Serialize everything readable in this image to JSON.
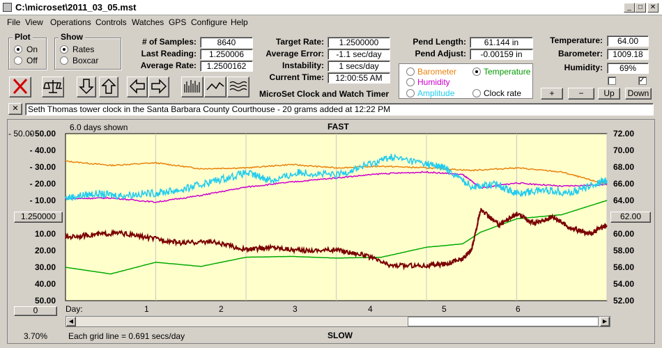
{
  "window": {
    "title": "C:\\microset\\2011_03_05.mst"
  },
  "menu": [
    "File",
    "View",
    "Operations",
    "Controls",
    "Watches",
    "GPS",
    "Configure",
    "Help"
  ],
  "plot_group": {
    "title": "Plot",
    "options": [
      "On",
      "Off"
    ],
    "selected": "On"
  },
  "show_group": {
    "title": "Show",
    "options": [
      "Rates",
      "Boxcar"
    ],
    "selected": "Rates"
  },
  "stats": {
    "samples_label": "# of Samples:",
    "samples": "8640",
    "last_reading_label": "Last Reading:",
    "last_reading": "1.250006",
    "average_rate_label": "Average Rate:",
    "average_rate": "1.2500162",
    "target_rate_label": "Target Rate:",
    "target_rate": "1.2500000",
    "average_error_label": "Average Error:",
    "average_error": "-1.1 sec/day",
    "instability_label": "Instability:",
    "instability": "1 secs/day",
    "current_time_label": "Current Time:",
    "current_time": "12:00:55 AM",
    "pend_length_label": "Pend Length:",
    "pend_length": "61.144 in",
    "pend_adjust_label": "Pend Adjust:",
    "pend_adjust": "-0.00159 in",
    "temperature_label": "Temperature:",
    "temperature": "64.00",
    "barometer_label": "Barometer:",
    "barometer": "1009.18",
    "humidity_label": "Humidity:",
    "humidity": "69%"
  },
  "app_name": "MicroSet Clock and Watch Timer",
  "sensor_options": [
    {
      "label": "Barometer",
      "color": "#e8820c",
      "selected": false
    },
    {
      "label": "Temperature",
      "color": "#009900",
      "selected": true
    },
    {
      "label": "Humidity",
      "color": "#cc00cc",
      "selected": false
    },
    {
      "label": "Clock rate",
      "color": "#000000",
      "selected": false
    },
    {
      "label": "Amplitude",
      "color": "#22ccee",
      "selected": false
    }
  ],
  "scale_buttons": [
    "+",
    "−",
    "Up",
    "Down"
  ],
  "note": "Seth Thomas tower clock in the Santa Barbara County Courthouse - 20 grams added at 12:22 PM",
  "chart_header": {
    "days_shown": "6.0 days shown",
    "fast": "FAST",
    "slow": "SLOW",
    "day_label": "Day:"
  },
  "left_center_value": "1.250000",
  "left_bottom_value": "0",
  "right_center_value": "62.00",
  "footer": {
    "percent": "3.70%",
    "grid_note": "Each grid line = 0.691 secs/day"
  },
  "chart_data": {
    "type": "line",
    "x_days": [
      1,
      2,
      3,
      4,
      5,
      6
    ],
    "xlim": [
      0,
      6
    ],
    "left_ticks": [
      "- 50.00",
      "- 40.00",
      "- 30.00",
      "- 20.00",
      "- 10.00",
      "10.00",
      "20.00",
      "30.00",
      "40.00",
      "50.00"
    ],
    "right_ticks": [
      "72.00",
      "70.00",
      "68.00",
      "66.00",
      "64.00",
      "62.00",
      "60.00",
      "58.00",
      "56.00",
      "54.00",
      "52.00"
    ],
    "ylim_right": [
      52,
      72
    ],
    "series": [
      {
        "name": "Barometer",
        "color": "#e8820c",
        "x": [
          0,
          0.5,
          1,
          1.5,
          2,
          2.5,
          3,
          3.5,
          4,
          4.5,
          5,
          5.5,
          5.9,
          6
        ],
        "y": [
          68.7,
          68.2,
          68.5,
          67.8,
          67.9,
          68.3,
          67.9,
          68.1,
          67.9,
          67.6,
          67.9,
          67.4,
          66.2,
          66.0
        ]
      },
      {
        "name": "Humidity",
        "color": "#cc00cc",
        "x": [
          0,
          0.5,
          1,
          1.5,
          2,
          2.5,
          3,
          3.5,
          4,
          4.4,
          4.6,
          5,
          5.5,
          6
        ],
        "y": [
          64.2,
          64.3,
          63.8,
          64.6,
          65.6,
          66.2,
          66.7,
          67.2,
          67.4,
          67.1,
          65.5,
          66.1,
          65.7,
          65.9
        ]
      },
      {
        "name": "Amplitude",
        "color": "#22ccee",
        "x": [
          0,
          0.3,
          0.6,
          1,
          1.3,
          1.6,
          2,
          2.3,
          2.6,
          3,
          3.3,
          3.6,
          4,
          4.2,
          4.5,
          4.8,
          5,
          5.3,
          5.6,
          5.9,
          6
        ],
        "y": [
          64.3,
          64.8,
          64.6,
          64.9,
          65.3,
          66.2,
          67.3,
          66.4,
          67.4,
          67.0,
          68.1,
          69.2,
          68.4,
          67.9,
          65.7,
          65.9,
          64.8,
          65.3,
          64.9,
          66.1,
          66.4
        ]
      },
      {
        "name": "Temperature",
        "color": "#00aa00",
        "x": [
          0,
          0.5,
          1,
          1.5,
          2,
          2.5,
          3,
          3.5,
          4,
          4.4,
          4.6,
          5,
          5.5,
          6
        ],
        "y": [
          56.0,
          55.2,
          56.6,
          56.1,
          57.2,
          57.3,
          57.1,
          57.2,
          58.4,
          58.8,
          60.2,
          61.8,
          62.3,
          64.0
        ]
      },
      {
        "name": "Clock rate",
        "color": "#7a0000",
        "x": [
          0,
          0.3,
          0.6,
          1,
          1.3,
          1.6,
          2,
          2.3,
          2.6,
          3,
          3.3,
          3.6,
          4,
          4.2,
          4.4,
          4.5,
          4.6,
          4.8,
          5,
          5.2,
          5.4,
          5.6,
          5.8,
          6
        ],
        "y": [
          59.6,
          59.9,
          60.1,
          59.4,
          58.9,
          59.1,
          58.1,
          58.4,
          58.0,
          58.1,
          57.5,
          56.2,
          56.2,
          56.4,
          57.0,
          58.1,
          62.9,
          61.1,
          62.4,
          61.2,
          62.1,
          60.7,
          60.0,
          61.0
        ]
      }
    ]
  }
}
